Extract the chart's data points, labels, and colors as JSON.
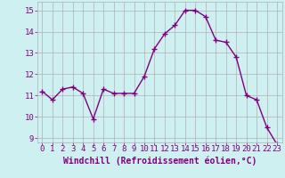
{
  "x": [
    0,
    1,
    2,
    3,
    4,
    5,
    6,
    7,
    8,
    9,
    10,
    11,
    12,
    13,
    14,
    15,
    16,
    17,
    18,
    19,
    20,
    21,
    22,
    23
  ],
  "y": [
    11.2,
    10.8,
    11.3,
    11.4,
    11.1,
    9.9,
    11.3,
    11.1,
    11.1,
    11.1,
    11.9,
    13.2,
    13.9,
    14.3,
    15.0,
    15.0,
    14.7,
    13.6,
    13.5,
    12.8,
    11.0,
    10.8,
    9.5,
    8.7
  ],
  "line_color": "#800080",
  "marker": "+",
  "markersize": 4,
  "linewidth": 1.0,
  "background_color": "#cff0f0",
  "grid_color": "#b0b0b0",
  "xlabel": "Windchill (Refroidissement éolien,°C)",
  "xlabel_fontsize": 7,
  "tick_fontsize": 6.5,
  "ylim": [
    8.8,
    15.4
  ],
  "yticks": [
    9,
    10,
    11,
    12,
    13,
    14,
    15
  ],
  "xticks": [
    0,
    1,
    2,
    3,
    4,
    5,
    6,
    7,
    8,
    9,
    10,
    11,
    12,
    13,
    14,
    15,
    16,
    17,
    18,
    19,
    20,
    21,
    22,
    23
  ]
}
